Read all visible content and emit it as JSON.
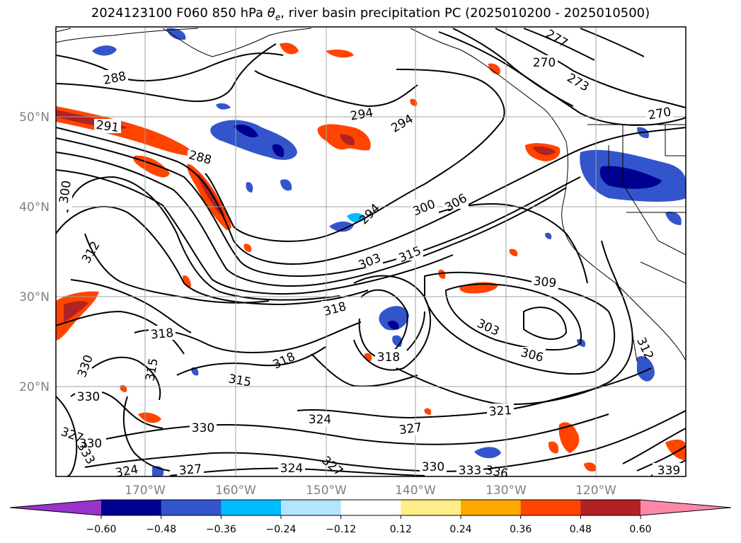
{
  "title": {
    "prefix": "2024123100 F060 850 hPa ",
    "theta": "θ",
    "theta_sub": "e",
    "suffix": ", river basin precipitation PC (2025010200 - 2025010500)"
  },
  "map": {
    "lon_ticks": [
      "170°W",
      "160°W",
      "150°W",
      "140°W",
      "130°W",
      "120°W"
    ],
    "lat_ticks": [
      "50°N",
      "40°N",
      "30°N",
      "20°N"
    ],
    "gridline_color": "#a0a0a0",
    "contour_labels": [
      "288",
      "291",
      "288",
      "294",
      "294",
      "277",
      "270",
      "273",
      "270",
      "300",
      "294",
      "300",
      "306",
      "312",
      "303",
      "315",
      "309",
      "318",
      "318",
      "303",
      "306",
      "312",
      "318",
      "315",
      "318",
      "330",
      "330",
      "321",
      "327",
      "330",
      "324",
      "327",
      "330",
      "333",
      "336",
      "324",
      "327",
      "324",
      "327",
      "330",
      "333",
      "339",
      "315"
    ]
  },
  "colorbar": {
    "colors": [
      "#9933cc",
      "#000090",
      "#3355cc",
      "#00bbff",
      "#b3e5ff",
      "#ffffff",
      "#ffee88",
      "#ffaa00",
      "#ff4400",
      "#b22222",
      "#ff88aa"
    ],
    "tick_labels": [
      "−0.60",
      "−0.48",
      "−0.36",
      "−0.24",
      "−0.12",
      "0.12",
      "0.24",
      "0.36",
      "0.48",
      "0.60"
    ]
  }
}
